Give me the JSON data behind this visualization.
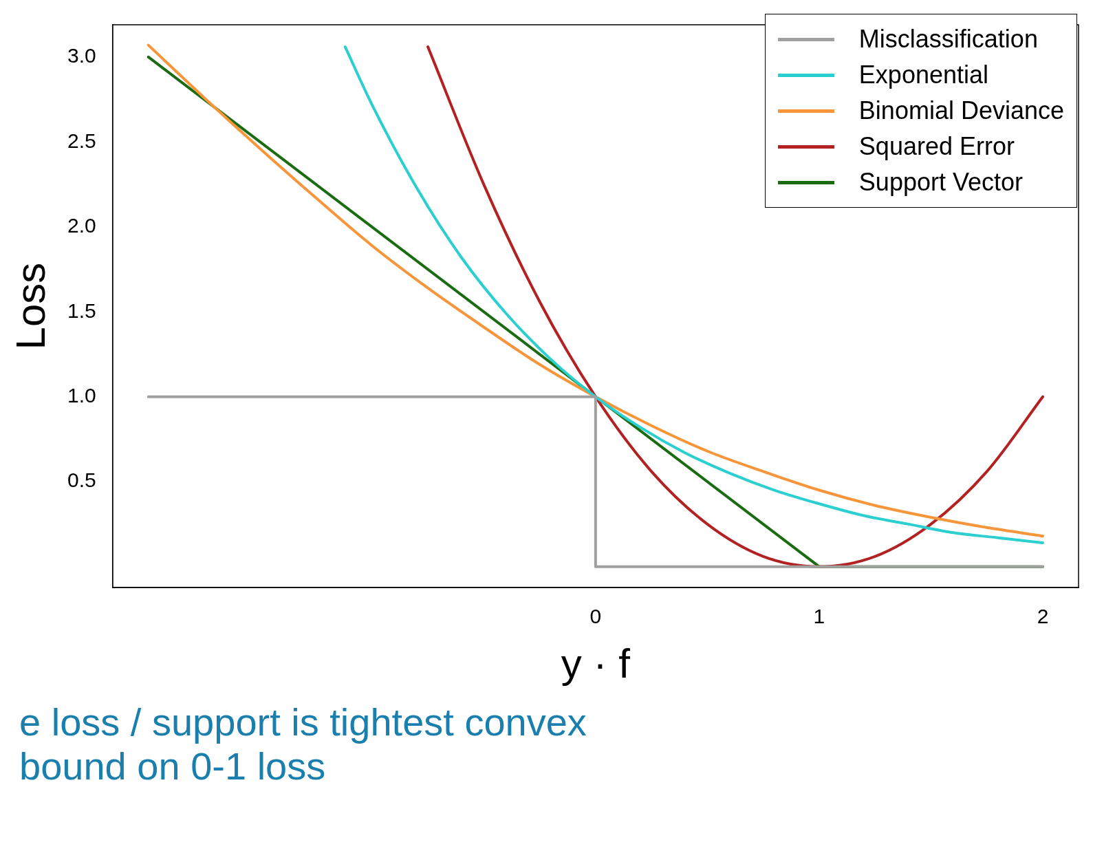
{
  "chart_data": {
    "type": "line",
    "xlabel": "y · f",
    "ylabel": "Loss",
    "xlim": [
      -2.16,
      2.16
    ],
    "ylim": [
      -0.123,
      3.19
    ],
    "xticks": [
      0,
      1,
      2
    ],
    "yticks": [
      0.5,
      {
        "value": 1,
        "label": "1.0"
      },
      1.5,
      {
        "value": 2,
        "label": "2.0"
      },
      2.5,
      {
        "value": 3,
        "label": "3.0"
      }
    ],
    "grid": false,
    "legend": "top right",
    "marker": "none",
    "line_style": "solid",
    "annotations": [
      "e loss / support is tightest convex bound on 0-1 loss"
    ],
    "series": [
      {
        "name": "Misclassification",
        "color": "#a0a0a0",
        "x": [
          -2,
          0,
          0,
          2
        ],
        "values": [
          1,
          1,
          0,
          0
        ]
      },
      {
        "name": "Exponential",
        "color": "#2ccfcf",
        "x": [
          -1.12,
          -1,
          -0.8,
          -0.6,
          -0.4,
          -0.2,
          0,
          0.2,
          0.4,
          0.6,
          0.8,
          1,
          1.2,
          1.4,
          1.6,
          1.8,
          2
        ],
        "values": [
          3.06,
          2.72,
          2.23,
          1.82,
          1.49,
          1.22,
          1,
          0.82,
          0.67,
          0.55,
          0.45,
          0.37,
          0.3,
          0.25,
          0.2,
          0.17,
          0.14
        ]
      },
      {
        "name": "Binomial Deviance",
        "color": "#f7953a",
        "x": [
          -2,
          -1.75,
          -1.5,
          -1.25,
          -1,
          -0.75,
          -0.5,
          -0.25,
          0,
          0.25,
          0.5,
          0.75,
          1,
          1.25,
          1.5,
          1.75,
          2
        ],
        "values": [
          3.07,
          2.76,
          2.46,
          2.17,
          1.89,
          1.64,
          1.41,
          1.19,
          1,
          0.83,
          0.68,
          0.56,
          0.45,
          0.36,
          0.29,
          0.23,
          0.18
        ]
      },
      {
        "name": "Squared Error",
        "color": "#b22222",
        "x": [
          -0.75,
          -0.5,
          -0.25,
          0,
          0.25,
          0.5,
          0.75,
          1,
          1.25,
          1.5,
          1.75,
          2
        ],
        "values": [
          3.06,
          2.25,
          1.56,
          1,
          0.56,
          0.25,
          0.06,
          0,
          0.06,
          0.25,
          0.56,
          1
        ]
      },
      {
        "name": "Support Vector",
        "color": "#1a6b12",
        "x": [
          -2,
          1,
          2
        ],
        "values": [
          3,
          0,
          0
        ]
      }
    ]
  }
}
